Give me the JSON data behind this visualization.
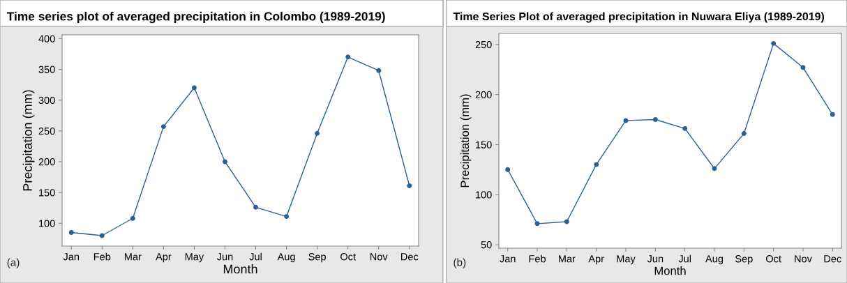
{
  "chart_data": [
    {
      "type": "line",
      "title": "Time series plot of averaged precipitation in Colombo (1989-2019)",
      "xlabel": "Month",
      "ylabel": "Precipitation (mm)",
      "categories": [
        "Jan",
        "Feb",
        "Mar",
        "Apr",
        "May",
        "Jun",
        "Jul",
        "Aug",
        "Sep",
        "Oct",
        "Nov",
        "Dec"
      ],
      "series": [
        {
          "color": "#2a6099",
          "values": [
            85,
            80,
            108,
            257,
            320,
            200,
            126,
            111,
            246,
            370,
            348,
            161
          ]
        }
      ],
      "ylim": [
        63,
        406
      ],
      "yticks": [
        100,
        150,
        200,
        250,
        300,
        350,
        400
      ],
      "marker": "circle",
      "line_style": "solid",
      "grid": false,
      "legend": false,
      "annotations": [
        "(a)"
      ]
    },
    {
      "type": "line",
      "title": "Time Series Plot of averaged precipitation in Nuwara Eliya (1989-2019)",
      "xlabel": "Month",
      "ylabel": "Precipitation (mm)",
      "categories": [
        "Jan",
        "Feb",
        "Mar",
        "Apr",
        "May",
        "Jun",
        "Jul",
        "Aug",
        "Sep",
        "Oct",
        "Nov",
        "Dec"
      ],
      "series": [
        {
          "color": "#2a6099",
          "values": [
            125,
            71,
            73,
            130,
            174,
            175,
            166,
            126,
            161,
            251,
            227,
            180
          ]
        }
      ],
      "ylim": [
        46.5,
        261
      ],
      "yticks": [
        50,
        100,
        150,
        200,
        250
      ],
      "marker": "circle",
      "line_style": "solid",
      "grid": false,
      "legend": false,
      "annotations": [
        "(b)"
      ]
    }
  ]
}
